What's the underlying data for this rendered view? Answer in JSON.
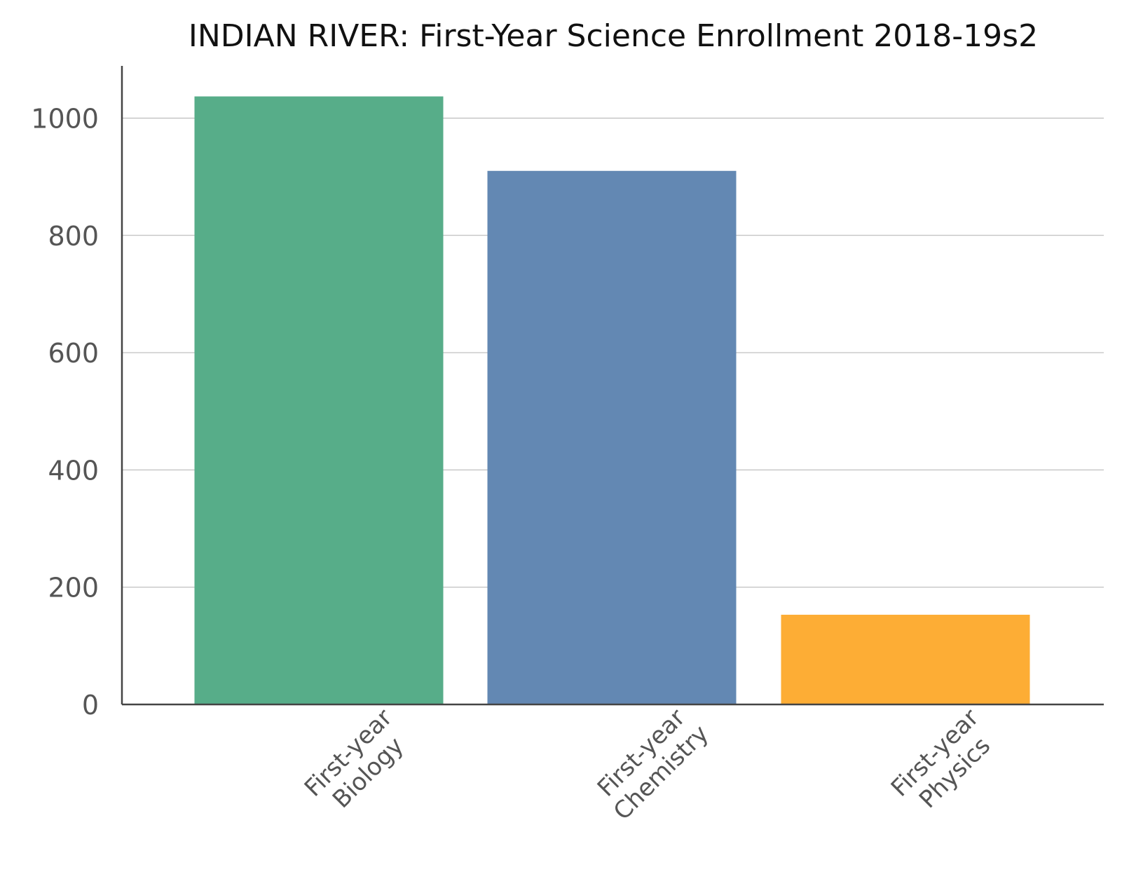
{
  "chart_data": {
    "type": "bar",
    "title": "INDIAN RIVER: First-Year Science Enrollment 2018-19s2",
    "xlabel": "",
    "ylabel": "",
    "categories": [
      "First-year Biology",
      "First-year Chemistry",
      "First-year Physics"
    ],
    "category_label_lines": [
      [
        "First-year",
        "Biology"
      ],
      [
        "First-year",
        "Chemistry"
      ],
      [
        "First-year",
        "Physics"
      ]
    ],
    "values": [
      1037,
      910,
      153
    ],
    "colors": [
      "#57ad89",
      "#6388b3",
      "#fdad35"
    ],
    "ylim": [
      0,
      1090
    ],
    "yticks": [
      0,
      200,
      400,
      600,
      800,
      1000
    ],
    "grid": true,
    "legend": "none"
  }
}
